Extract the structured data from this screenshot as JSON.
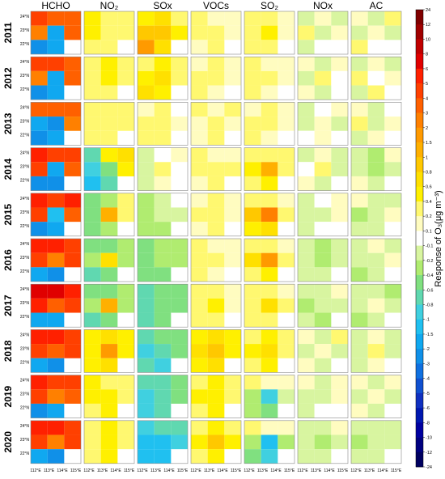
{
  "chart_data": {
    "type": "map-grid",
    "columns": [
      "HCHO",
      "NO₂",
      "SOx",
      "VOCs",
      "SO₂",
      "NOx",
      "AC"
    ],
    "rows": [
      "2011",
      "2012",
      "2013",
      "2014",
      "2015",
      "2016",
      "2017",
      "2018",
      "2019",
      "2020"
    ],
    "lat_labels": [
      "24°N",
      "23°N",
      "22°N"
    ],
    "lon_labels": [
      "112°E",
      "113°E",
      "114°E",
      "115°E"
    ],
    "colorbar_label": "Response of  O₃(μg m⁻³)",
    "colorbar_ticks": [
      24,
      12,
      10,
      8,
      6,
      5,
      4,
      3,
      2,
      1.5,
      1,
      0.8,
      0.6,
      0.4,
      0.2,
      0.1,
      -0.1,
      -0.2,
      -0.4,
      -0.6,
      -0.8,
      -1,
      -1.5,
      -2,
      -3,
      -4,
      -5,
      -6,
      -8,
      -10,
      -12,
      -24
    ],
    "colorbar_colors": [
      "#800000",
      "#a00000",
      "#c00000",
      "#e00000",
      "#ff2000",
      "#ff4000",
      "#ff6000",
      "#ff8000",
      "#ff9a00",
      "#ffb000",
      "#ffc800",
      "#ffe000",
      "#fff000",
      "#fff870",
      "#fffcc0",
      "#ffffff",
      "#d8f5a0",
      "#b0ec70",
      "#80e080",
      "#60d8b0",
      "#40d0e0",
      "#20c0f0",
      "#10a8f0",
      "#1090e8",
      "#1070e0",
      "#1050d0",
      "#1030c0",
      "#0018b0",
      "#0000a0",
      "#000080",
      "#000060"
    ],
    "values": [
      [
        [
          4,
          3,
          3,
          2,
          -2,
          3,
          -3,
          -2,
          null
        ],
        [
          0.4,
          0.3,
          0.2,
          0.4,
          0.3,
          0.2,
          0.3,
          0.2,
          null
        ],
        [
          0.4,
          0.6,
          0.3,
          0.8,
          0.8,
          0.4,
          1.5,
          0.6,
          null
        ],
        [
          0.2,
          0.1,
          0.1,
          0.2,
          0.3,
          0.1,
          0.1,
          0.2,
          null
        ],
        [
          0.2,
          0.2,
          0.1,
          0.3,
          0.4,
          0.1,
          0.2,
          0.2,
          null
        ],
        [
          -0.2,
          0.1,
          -0.2,
          0.2,
          -0.2,
          0.1,
          -0.2,
          -0.1,
          null
        ],
        [
          0.1,
          -0.2,
          0.2,
          -0.2,
          0.1,
          -0.2,
          0.2,
          -0.1,
          null
        ]
      ],
      [
        [
          4,
          4,
          3,
          2,
          -2,
          3,
          -3,
          -2,
          null
        ],
        [
          0.3,
          0.4,
          0.2,
          0.3,
          0.4,
          0.2,
          0.3,
          0.2,
          null
        ],
        [
          0.3,
          0.4,
          0.3,
          0.5,
          0.6,
          0.3,
          0.6,
          0.4,
          null
        ],
        [
          0.1,
          0.2,
          0.1,
          0.2,
          0.2,
          0.1,
          0.2,
          0.1,
          null
        ],
        [
          0.2,
          0.1,
          0.1,
          0.2,
          0.3,
          0.1,
          0.2,
          0.1,
          null
        ],
        [
          0.1,
          -0.2,
          0.1,
          -0.2,
          0.2,
          -0.1,
          0.1,
          -0.2,
          null
        ],
        [
          -0.2,
          0.1,
          -0.2,
          0.2,
          -0.1,
          0.1,
          -0.2,
          0.2,
          null
        ]
      ],
      [
        [
          3,
          3,
          3,
          -2,
          -3,
          2,
          -3,
          -2,
          null
        ],
        [
          0.3,
          0.2,
          0.3,
          0.2,
          0.3,
          0.2,
          0.2,
          0.2,
          null
        ],
        [
          0.1,
          0.2,
          -0.1,
          0.2,
          0.3,
          0.1,
          0.2,
          0.2,
          null
        ],
        [
          0.2,
          0.1,
          0.2,
          0.1,
          0.2,
          0.1,
          0.1,
          0.2,
          null
        ],
        [
          0.1,
          0.2,
          0.1,
          0.2,
          0.3,
          0.1,
          0.2,
          0.1,
          null
        ],
        [
          -0.2,
          -0.1,
          0.1,
          -0.2,
          0.1,
          -0.2,
          -0.1,
          0.1,
          null
        ],
        [
          0.1,
          -0.2,
          -0.1,
          0.2,
          -0.2,
          0.1,
          -0.2,
          0.1,
          null
        ]
      ],
      [
        [
          5,
          4,
          4,
          4,
          -2,
          3,
          -3,
          -3,
          null
        ],
        [
          -0.8,
          0.4,
          0.6,
          -1,
          -0.6,
          0.4,
          -1.5,
          -0.8,
          null
        ],
        [
          -0.2,
          -0.1,
          0.1,
          -0.2,
          0.2,
          -0.1,
          -0.2,
          0.1,
          null
        ],
        [
          0.2,
          0.1,
          0.1,
          0.2,
          0.3,
          0.2,
          0.1,
          0.2,
          null
        ],
        [
          0.2,
          0.3,
          0.2,
          0.4,
          1,
          0.3,
          0.3,
          0.4,
          null
        ],
        [
          -0.2,
          0.1,
          -0.2,
          -0.1,
          0.2,
          -0.2,
          0.1,
          -0.2,
          null
        ],
        [
          -0.2,
          -0.4,
          0.1,
          -0.2,
          -0.4,
          -0.2,
          0.1,
          -0.2,
          null
        ]
      ],
      [
        [
          5,
          4,
          5,
          4,
          -1.5,
          3,
          -3,
          -2,
          null
        ],
        [
          -0.6,
          -0.4,
          0.3,
          -0.5,
          1,
          0.2,
          -0.6,
          -0.4,
          null
        ],
        [
          -0.3,
          -0.2,
          -0.1,
          -0.4,
          -0.2,
          -0.2,
          -0.4,
          -0.3,
          null
        ],
        [
          0.1,
          0.2,
          0.1,
          0.2,
          0.2,
          0.1,
          0.1,
          0.2,
          null
        ],
        [
          0.2,
          0.3,
          0.1,
          0.8,
          2,
          0.3,
          0.4,
          0.6,
          null
        ],
        [
          -0.2,
          -0.1,
          0.1,
          -0.2,
          -0.2,
          0.1,
          -0.2,
          -0.1,
          null
        ],
        [
          0.1,
          -0.2,
          -0.2,
          -0.4,
          -0.2,
          0.1,
          -0.2,
          -0.2,
          null
        ]
      ],
      [
        [
          5,
          5,
          4,
          4,
          2,
          4,
          -2,
          -3,
          null
        ],
        [
          -0.6,
          -0.5,
          -0.3,
          -0.4,
          0.6,
          -0.3,
          -0.8,
          -0.5,
          null
        ],
        [
          -0.5,
          -0.4,
          -0.3,
          -0.6,
          -0.4,
          -0.3,
          -0.6,
          -0.5,
          null
        ],
        [
          0.2,
          0.1,
          0.1,
          0.2,
          0.3,
          0.1,
          0.2,
          0.1,
          null
        ],
        [
          0.2,
          0.3,
          0.1,
          0.6,
          1.5,
          0.2,
          0.3,
          0.4,
          null
        ],
        [
          -0.2,
          -0.4,
          -0.2,
          -0.2,
          -0.4,
          -0.2,
          -0.2,
          -0.2,
          null
        ],
        [
          -0.2,
          0.1,
          -0.2,
          -0.2,
          -0.2,
          0.1,
          -0.4,
          -0.2,
          null
        ]
      ],
      [
        [
          6,
          6,
          5,
          5,
          3,
          4,
          -2,
          -2,
          null
        ],
        [
          -0.6,
          -0.5,
          -0.4,
          -0.3,
          1,
          -0.3,
          -0.8,
          -0.5,
          null
        ],
        [
          -0.8,
          -0.6,
          -0.5,
          -0.8,
          -0.6,
          -0.5,
          -0.8,
          -0.6,
          null
        ],
        [
          0.2,
          0.2,
          0.1,
          0.3,
          0.4,
          0.1,
          0.2,
          0.2,
          null
        ],
        [
          0.2,
          0.2,
          0.1,
          0.3,
          0.6,
          0.2,
          0.2,
          0.3,
          null
        ],
        [
          -0.2,
          -0.2,
          0.1,
          -0.4,
          -0.2,
          -0.2,
          -0.2,
          -0.4,
          null
        ],
        [
          -0.2,
          -0.2,
          -0.4,
          -0.2,
          0.1,
          -0.2,
          -0.4,
          -0.2,
          null
        ]
      ],
      [
        [
          5,
          5,
          4,
          4,
          3,
          4,
          -2,
          -3,
          null
        ],
        [
          0.4,
          0.6,
          0.4,
          0.5,
          1.5,
          0.5,
          0.4,
          0.6,
          null
        ],
        [
          -0.8,
          -0.6,
          -0.6,
          -1,
          -0.8,
          -0.6,
          -0.8,
          -1,
          null
        ],
        [
          0.5,
          0.6,
          0.4,
          0.6,
          0.8,
          0.5,
          0.5,
          0.6,
          null
        ],
        [
          0.3,
          0.4,
          0.2,
          0.4,
          0.6,
          0.3,
          0.3,
          0.4,
          null
        ],
        [
          0.1,
          -0.2,
          0.2,
          -0.2,
          0.1,
          -0.2,
          0.1,
          -0.2,
          null
        ],
        [
          -0.2,
          0.1,
          -0.2,
          -0.2,
          0.2,
          -0.2,
          -0.2,
          0.1,
          null
        ]
      ],
      [
        [
          5,
          4,
          4,
          4,
          2,
          3,
          -3,
          -2,
          null
        ],
        [
          0.4,
          0.3,
          0.3,
          0.4,
          0.5,
          0.3,
          0.3,
          0.4,
          null
        ],
        [
          -0.8,
          -0.8,
          -0.6,
          -0.9,
          -0.8,
          -0.6,
          -1,
          -0.8,
          null
        ],
        [
          0.3,
          0.4,
          0.3,
          0.4,
          0.5,
          0.3,
          0.3,
          0.4,
          null
        ],
        [
          0.2,
          0.1,
          0.1,
          -0.4,
          -1,
          -0.2,
          -0.3,
          -0.6,
          null
        ],
        [
          0.1,
          -0.2,
          0.1,
          -0.2,
          -0.2,
          0.1,
          -0.2,
          -0.1,
          null
        ],
        [
          0.1,
          -0.2,
          0.1,
          -0.2,
          0.1,
          -0.2,
          0.1,
          -0.2,
          null
        ]
      ],
      [
        [
          5,
          5,
          4,
          4,
          2,
          4,
          -2,
          -3,
          null
        ],
        [
          0.3,
          0.4,
          0.3,
          0.3,
          0.5,
          0.3,
          0.3,
          0.4,
          null
        ],
        [
          -1,
          -0.8,
          -0.8,
          -1.5,
          -1.5,
          -1,
          -1.5,
          -1.5,
          null
        ],
        [
          0.3,
          0.4,
          0.3,
          0.4,
          0.8,
          0.4,
          0.3,
          0.5,
          null
        ],
        [
          0.2,
          0.1,
          0.1,
          -0.4,
          -1.5,
          -0.3,
          -0.6,
          -1,
          null
        ],
        [
          -0.2,
          -0.2,
          0.1,
          -0.2,
          -0.4,
          -0.2,
          -0.2,
          -0.2,
          null
        ],
        [
          -0.2,
          -0.2,
          -0.2,
          -0.4,
          -0.2,
          -0.2,
          -0.2,
          -0.2,
          null
        ]
      ]
    ]
  }
}
